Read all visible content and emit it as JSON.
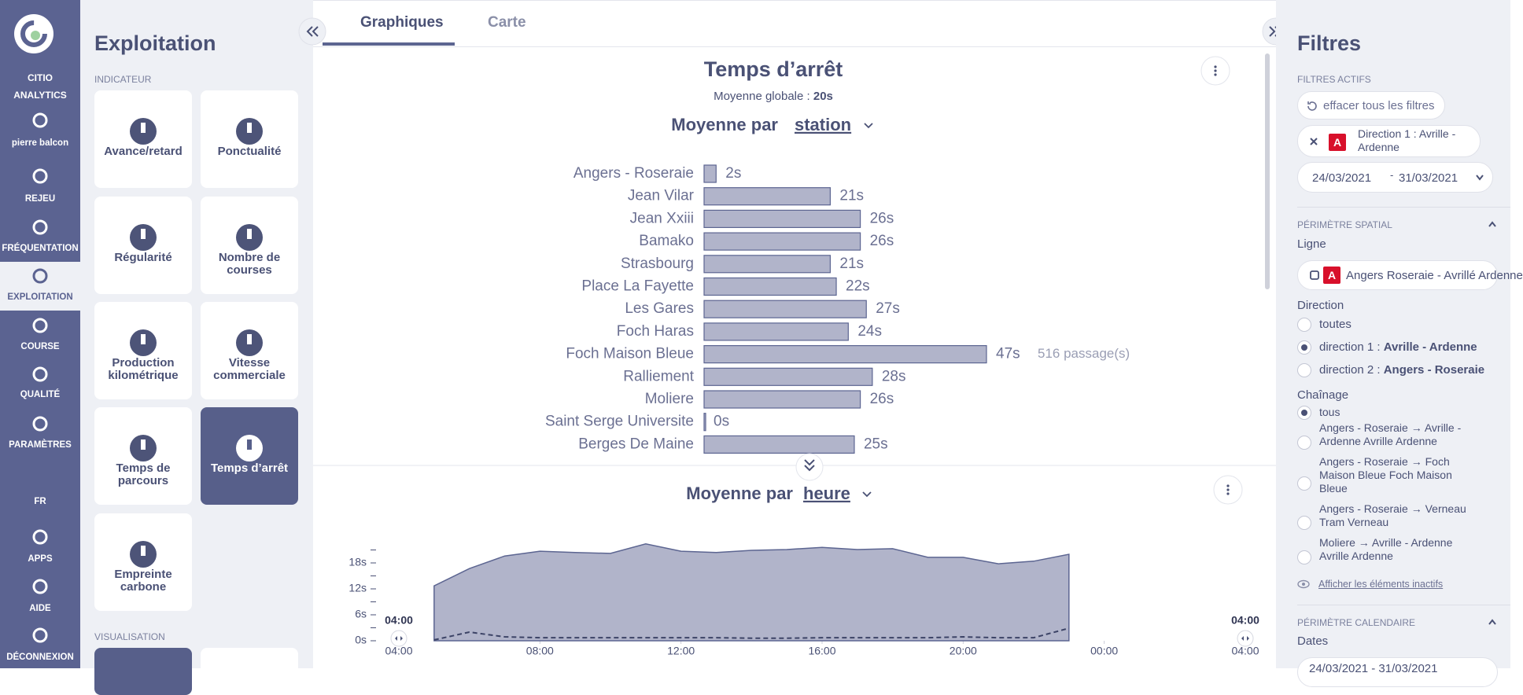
{
  "nav": {
    "logo_label": "CITIO ANALYTICS",
    "active": "EXPLOITATION",
    "items": [
      "pierre balcon",
      "REJEU",
      "FRÉQUENTATION",
      "EXPLOITATION",
      "COURSE",
      "QUALITÉ",
      "PARAMÈTRES",
      "FR",
      "APPS",
      "AIDE",
      "DÉCONNEXION"
    ]
  },
  "panel": {
    "title": "Exploitation",
    "section": "INDICATEUR",
    "selected": "Temps d’arrêt",
    "indicators": [
      "Avance/retard",
      "Ponctualité",
      "Régularité",
      "Nombre de courses",
      "Production kilométrique",
      "Vitesse commerciale",
      "Temps de parcours",
      "Temps d’arrêt",
      "Empreinte carbone"
    ],
    "section2": "VISUALISATION"
  },
  "tabs": {
    "items": [
      "Graphiques",
      "Carte"
    ],
    "active": "Graphiques"
  },
  "chart_data": [
    {
      "type": "bar",
      "orientation": "horizontal",
      "title": "Temps d’arrêt",
      "subtitle_label": "Moyenne globale : ",
      "subtitle_value": "20s",
      "group_label": "Moyenne par",
      "group_value": "station",
      "color": "#b1b4ca",
      "edge_color": "#5c6591",
      "categories": [
        "Angers - Roseraie",
        "Jean Vilar",
        "Jean Xxiii",
        "Bamako",
        "Strasbourg",
        "Place La Fayette",
        "Les Gares",
        "Foch Haras",
        "Foch Maison Bleue",
        "Ralliement",
        "Moliere",
        "Saint Serge Universite",
        "Berges De Maine"
      ],
      "values": [
        2,
        21,
        26,
        26,
        21,
        22,
        27,
        24,
        47,
        28,
        26,
        0,
        25
      ],
      "value_labels": [
        "2s",
        "21s",
        "26s",
        "26s",
        "21s",
        "22s",
        "27s",
        "24s",
        "47s",
        "28s",
        "26s",
        "0s",
        "25s"
      ],
      "annotation": {
        "text": "516 passage(s)",
        "category": "Foch Maison Bleue"
      }
    },
    {
      "type": "area",
      "group_label": "Moyenne par",
      "group_value": "heure",
      "range_start": "04:00",
      "range_end": "04:00",
      "x": [
        5,
        6,
        7,
        8,
        9,
        10,
        11,
        12,
        13,
        14,
        15,
        16,
        17,
        18,
        19,
        20,
        21,
        22,
        23
      ],
      "series": [
        {
          "color": "#b1b4ca",
          "values": [
            12.7,
            16.7,
            19.6,
            20.7,
            20.4,
            20.2,
            22.4,
            20.7,
            20.4,
            20.9,
            21.1,
            21.6,
            21.1,
            21.3,
            19.3,
            19.3,
            17.8,
            18.4,
            20
          ]
        },
        {
          "color": "#3c4366",
          "style": "dashed",
          "values": [
            0.2,
            2,
            0.9,
            0.7,
            0.7,
            0.7,
            0.7,
            0.7,
            0.7,
            0.6,
            0.6,
            0.7,
            0.7,
            0.7,
            0.7,
            0.9,
            0.7,
            0.7,
            2.9
          ]
        }
      ],
      "xlim": [
        4,
        28
      ],
      "xticks": [
        {
          "value": 4,
          "label": "04:00"
        },
        {
          "value": 8,
          "label": "08:00"
        },
        {
          "value": 12,
          "label": "12:00"
        },
        {
          "value": 16,
          "label": "16:00"
        },
        {
          "value": 20,
          "label": "20:00"
        },
        {
          "value": 24,
          "label": "00:00"
        },
        {
          "value": 28,
          "label": "04:00"
        }
      ],
      "ylim": [
        0,
        24
      ],
      "yticks": [
        {
          "value": 0,
          "label": "0s"
        },
        {
          "value": 6,
          "label": "6s"
        },
        {
          "value": 12,
          "label": "12s"
        },
        {
          "value": 18,
          "label": "18s"
        }
      ],
      "minor_yticks": [
        3,
        9,
        15,
        21
      ]
    }
  ],
  "filters": {
    "title": "Filtres",
    "active_section": "FILTRES ACTIFS",
    "clear": "effacer tous les filtres",
    "chip_badge": "A",
    "chip": "Direction 1 : Avrille - Ardenne",
    "date_from": "24/03/2021",
    "date_sep": "-",
    "date_to": "31/03/2021",
    "spatial": "PÉRIMÈTRE SPATIAL",
    "line_label": "Ligne",
    "line_badge": "A",
    "line_value": "Angers Roseraie - Avrillé Ardenne",
    "direction_label": "Direction",
    "direction_selected": 1,
    "directions": [
      {
        "prefix": "toutes",
        "bold": ""
      },
      {
        "prefix": "direction 1 : ",
        "bold": "Avrille - Ardenne"
      },
      {
        "prefix": "direction 2 : ",
        "bold": "Angers - Roseraie"
      }
    ],
    "chain_label": "Chaînage",
    "chain_selected": 0,
    "chains": [
      "tous",
      "Angers - Roseraie → Avrille - Ardenne Avrille Ardenne",
      "Angers - Roseraie → Foch Maison Bleue Foch Maison Bleue",
      "Angers - Roseraie → Verneau Tram Verneau",
      "Moliere → Avrille - Ardenne Avrille Ardenne"
    ],
    "show_inactive": "Afficher les éléments inactifs",
    "calendar": "PÉRIMÈTRE CALENDAIRE",
    "dates_label": "Dates",
    "dates_value": "24/03/2021 - 31/03/2021"
  }
}
